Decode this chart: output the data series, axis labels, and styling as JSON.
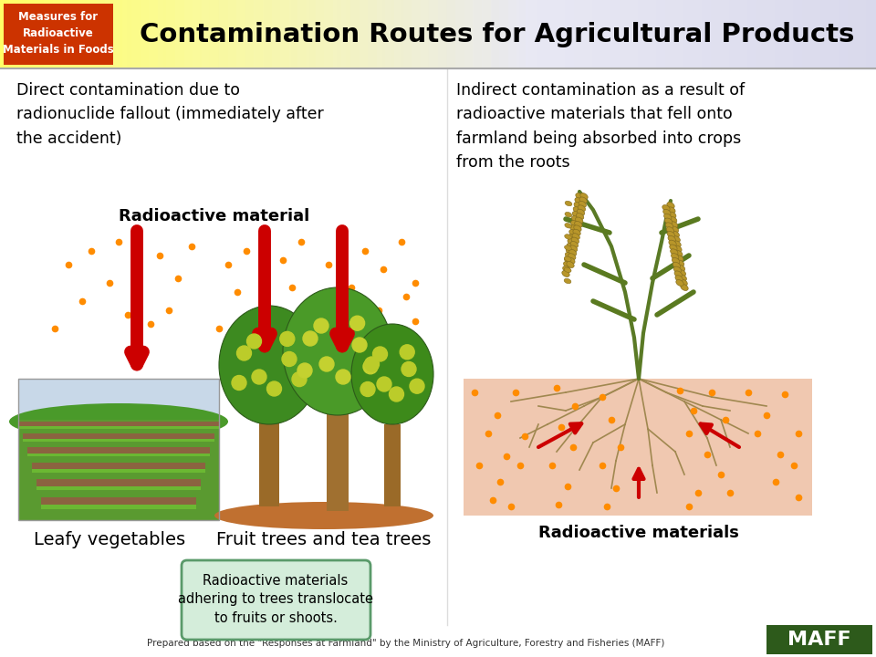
{
  "title": "Contamination Routes for Agricultural Products",
  "header_box_text": "Measures for\nRadioactive\nMaterials in Foods",
  "header_box_color": "#CC3300",
  "header_text_color": "#FFFFFF",
  "title_color": "#000000",
  "maff_bg": "#2D5A1B",
  "maff_text": "MAFF",
  "footer_text": "Prepared based on the \"Responses at Farmland\" by the Ministry of Agriculture, Forestry and Fisheries (MAFF)",
  "left_heading": "Direct contamination due to\nradionuclide fallout (immediately after\nthe accident)",
  "right_heading": "Indirect contamination as a result of\nradioactive materials that fell onto\nfarmland being absorbed into crops\nfrom the roots",
  "radioactive_material_label": "Radioactive material",
  "radioactive_materials_label": "Radioactive materials",
  "leafy_veg_label": "Leafy vegetables",
  "fruit_trees_label": "Fruit trees and tea trees",
  "callout_text": "Radioactive materials\nadhering to trees translocate\nto fruits or shoots.",
  "callout_bg": "#D4EDDA",
  "callout_border": "#5A9A6A",
  "dot_color": "#FF8C00",
  "arrow_color": "#CC0000",
  "field_sky": "#C8D8E8",
  "field_green_dark": "#2D7D1A",
  "field_green_light": "#6BB030",
  "field_soil": "#8B6340",
  "tree_green": "#4A8C2A",
  "tree_trunk": "#A0723A",
  "tree_mound": "#C07030",
  "root_bg": "#F0C8B0",
  "root_color": "#A08850",
  "bg_color": "#FFFFFF"
}
